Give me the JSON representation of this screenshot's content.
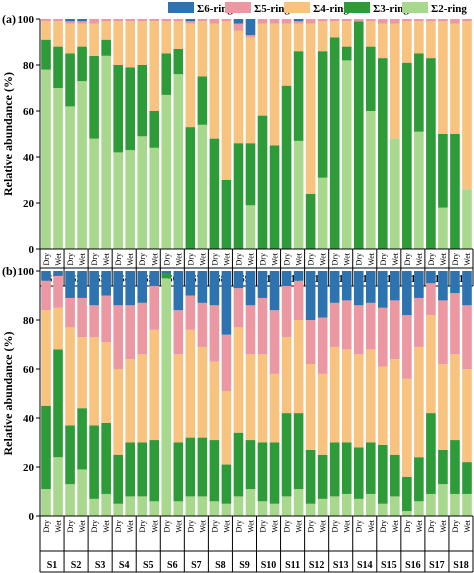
{
  "legend": [
    {
      "key": "r6",
      "label": "Σ6-ring",
      "color": "#2c73b0"
    },
    {
      "key": "r5",
      "label": "Σ5-ring",
      "color": "#ec98a2"
    },
    {
      "key": "r4",
      "label": "Σ4-ring",
      "color": "#f8c27f"
    },
    {
      "key": "r3",
      "label": "Σ3-ring",
      "color": "#2d9b38"
    },
    {
      "key": "r2",
      "label": "Σ2-ring",
      "color": "#a8d88d"
    }
  ],
  "conditions": [
    "Dry",
    "Wet"
  ],
  "sites": [
    "S1",
    "S2",
    "S3",
    "S4",
    "S5",
    "S6",
    "S7",
    "S8",
    "S9",
    "S10",
    "S11",
    "S12",
    "S13",
    "S14",
    "S15",
    "S16",
    "S17",
    "S18"
  ],
  "chart_data": [
    {
      "type": "bar",
      "stacked": true,
      "panel_label": "(a)",
      "ylabel": "Relative abundance (%)",
      "ylim": [
        0,
        100
      ],
      "yticks": [
        0,
        20,
        40,
        60,
        80,
        100
      ],
      "categories": [
        "S1 Dry",
        "S1 Wet",
        "S2 Dry",
        "S2 Wet",
        "S3 Dry",
        "S3 Wet",
        "S4 Dry",
        "S4 Wet",
        "S5 Dry",
        "S5 Wet",
        "S6 Dry",
        "S6 Wet",
        "S7 Dry",
        "S7 Wet",
        "S8 Dry",
        "S8 Wet",
        "S9 Dry",
        "S9 Wet",
        "S10 Dry",
        "S10 Wet",
        "S11 Dry",
        "S11 Wet",
        "S12 Dry",
        "S12 Wet",
        "S13 Dry",
        "S13 Wet",
        "S14 Dry",
        "S14 Wet",
        "S15 Dry",
        "S15 Wet",
        "S16 Dry",
        "S16 Wet",
        "S17 Dry",
        "S17 Wet",
        "S18 Dry",
        "S18 Wet"
      ],
      "series": [
        {
          "name": "Σ2-ring",
          "values": [
            78,
            70,
            62,
            73,
            48,
            84,
            42,
            43,
            49,
            44,
            67,
            76,
            0,
            54,
            0,
            0,
            0,
            19,
            0,
            0,
            0,
            47,
            0,
            31,
            0,
            82,
            0,
            60,
            0,
            48,
            0,
            51,
            0,
            18,
            0,
            26
          ]
        },
        {
          "name": "Σ3-ring",
          "values": [
            13,
            18,
            23,
            15,
            36,
            7,
            38,
            36,
            31,
            16,
            18,
            11,
            53,
            21,
            48,
            30,
            46,
            27,
            58,
            45,
            71,
            39,
            24,
            55,
            92,
            6,
            99,
            28,
            83,
            0,
            81,
            34,
            83,
            32,
            50,
            0
          ]
        },
        {
          "name": "Σ4-ring",
          "values": [
            8,
            11,
            13,
            10,
            14,
            8,
            19,
            20,
            19,
            39,
            14,
            12,
            45,
            24,
            50,
            69,
            49,
            46,
            40,
            53,
            27,
            12,
            74,
            13,
            7,
            11,
            0,
            11,
            15,
            50,
            18,
            14,
            16,
            49,
            48,
            73
          ]
        },
        {
          "name": "Σ5-ring",
          "values": [
            1,
            1,
            1,
            1,
            2,
            1,
            1,
            1,
            1,
            1,
            1,
            1,
            1,
            1,
            2,
            1,
            3,
            1,
            2,
            2,
            2,
            1,
            2,
            1,
            1,
            1,
            1,
            1,
            2,
            2,
            1,
            1,
            1,
            1,
            2,
            1
          ]
        },
        {
          "name": "Σ6-ring",
          "values": [
            0,
            0,
            1,
            1,
            0,
            0,
            0,
            0,
            0,
            0,
            0,
            0,
            1,
            0,
            0,
            0,
            2,
            7,
            0,
            0,
            0,
            1,
            0,
            0,
            0,
            0,
            0,
            0,
            0,
            0,
            0,
            0,
            0,
            0,
            0,
            0
          ]
        }
      ]
    },
    {
      "type": "bar",
      "stacked": true,
      "panel_label": "(b)",
      "ylabel": "Relative abundance (%)",
      "ylim": [
        0,
        100
      ],
      "yticks": [
        0,
        20,
        40,
        60,
        80,
        100
      ],
      "categories": [
        "S1 Dry",
        "S1 Wet",
        "S2 Dry",
        "S2 Wet",
        "S3 Dry",
        "S3 Wet",
        "S4 Dry",
        "S4 Wet",
        "S5 Dry",
        "S5 Wet",
        "S6 Dry",
        "S6 Wet",
        "S7 Dry",
        "S7 Wet",
        "S8 Dry",
        "S8 Wet",
        "S9 Dry",
        "S9 Wet",
        "S10 Dry",
        "S10 Wet",
        "S11 Dry",
        "S11 Wet",
        "S12 Dry",
        "S12 Wet",
        "S13 Dry",
        "S13 Wet",
        "S14 Dry",
        "S14 Wet",
        "S15 Dry",
        "S15 Wet",
        "S16 Dry",
        "S16 Wet",
        "S17 Dry",
        "S17 Wet",
        "S18 Dry",
        "S18 Wet"
      ],
      "series": [
        {
          "name": "Σ2-ring",
          "values": [
            11,
            24,
            13,
            19,
            7,
            9,
            5,
            8,
            8,
            6,
            97,
            6,
            8,
            8,
            6,
            5,
            8,
            11,
            6,
            5,
            8,
            11,
            5,
            7,
            8,
            9,
            7,
            9,
            5,
            8,
            2,
            6,
            9,
            13,
            9,
            9
          ]
        },
        {
          "name": "Σ3-ring",
          "values": [
            34,
            44,
            24,
            25,
            30,
            29,
            20,
            22,
            22,
            25,
            2,
            24,
            24,
            24,
            25,
            16,
            26,
            20,
            24,
            25,
            34,
            31,
            22,
            18,
            22,
            21,
            21,
            21,
            24,
            17,
            14,
            18,
            33,
            14,
            22,
            13
          ]
        },
        {
          "name": "Σ4-ring",
          "values": [
            39,
            17,
            40,
            29,
            36,
            33,
            35,
            34,
            36,
            45,
            0,
            36,
            44,
            37,
            32,
            30,
            43,
            35,
            36,
            28,
            31,
            38,
            35,
            33,
            39,
            38,
            38,
            38,
            32,
            39,
            40,
            45,
            40,
            35,
            35,
            38
          ]
        },
        {
          "name": "Σ5-ring",
          "values": [
            12,
            13,
            12,
            16,
            13,
            19,
            26,
            22,
            21,
            18,
            0,
            18,
            14,
            18,
            23,
            23,
            16,
            20,
            23,
            26,
            21,
            16,
            18,
            23,
            18,
            20,
            20,
            19,
            24,
            24,
            26,
            20,
            13,
            26,
            25,
            26
          ]
        },
        {
          "name": "Σ6-ring",
          "values": [
            4,
            2,
            11,
            11,
            14,
            10,
            14,
            14,
            13,
            6,
            1,
            16,
            10,
            13,
            14,
            26,
            7,
            14,
            11,
            16,
            6,
            4,
            20,
            19,
            13,
            12,
            14,
            13,
            15,
            12,
            18,
            11,
            5,
            12,
            9,
            14
          ]
        }
      ]
    }
  ]
}
